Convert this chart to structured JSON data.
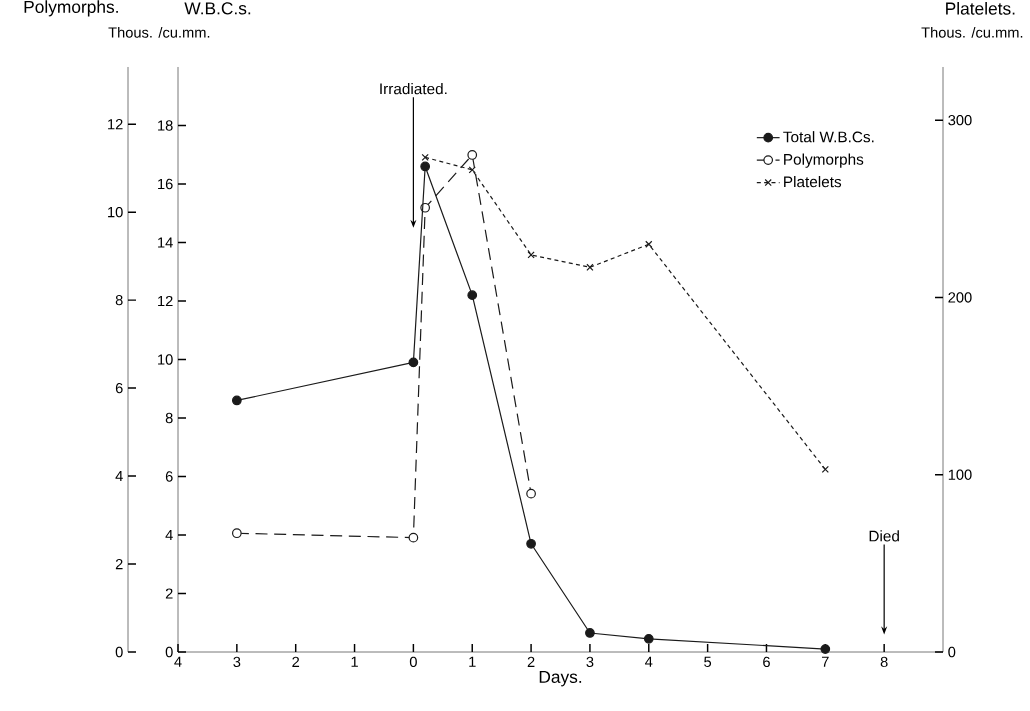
{
  "chart_data": {
    "type": "line",
    "xlabel": "Days.",
    "ylabel": "W.B.C.s.",
    "y2label": "Platelets.",
    "y3label": "Polymorphs.",
    "xlim": [
      -4,
      9
    ],
    "xticks": [
      {
        "value": -4,
        "label": "4"
      },
      {
        "value": -3,
        "label": "3"
      },
      {
        "value": -2,
        "label": "2"
      },
      {
        "value": -1,
        "label": "1"
      },
      0,
      1,
      2,
      3,
      4,
      5,
      6,
      7,
      8
    ],
    "ylim": [
      0,
      20
    ],
    "yticks": [
      0,
      2,
      4,
      6,
      8,
      10,
      12,
      14,
      16,
      18
    ],
    "y2lim": [
      0,
      330
    ],
    "y2ticks": [
      0,
      100,
      200,
      300
    ],
    "y3lim": [
      0,
      13.3
    ],
    "y3ticks": [
      0,
      2,
      4,
      6,
      8,
      10,
      12
    ],
    "legend": "top right",
    "series": [
      {
        "name": "Total W.B.Cs.",
        "color": "#1a1a1a",
        "marker": "circle",
        "line_style": "solid",
        "x": [
          -3,
          0,
          0.2,
          1,
          2,
          3,
          4,
          7
        ],
        "values": [
          8.6,
          9.9,
          16.6,
          12.2,
          3.7,
          0.65,
          0.45,
          0.1
        ]
      },
      {
        "name": "Polymorphs",
        "color": "#1a1a1a",
        "marker": "circle",
        "line_style": "dashed",
        "axis": "y3",
        "x": [
          -3,
          0,
          0.2,
          1,
          2
        ],
        "values": [
          2.7,
          2.6,
          10.1,
          11.3,
          3.6
        ]
      },
      {
        "name": "Platelets",
        "color": "#1a1a1a",
        "marker": "cross",
        "line_style": "dotted",
        "axis": "y2",
        "x": [
          0.2,
          1,
          2,
          3,
          4,
          7
        ],
        "values": [
          279,
          272,
          224,
          217,
          230,
          103
        ]
      }
    ],
    "annotations": [
      "Irradiated.",
      "Died",
      "Thous. /cu.mm.",
      "Thous. /cu.mm."
    ]
  }
}
